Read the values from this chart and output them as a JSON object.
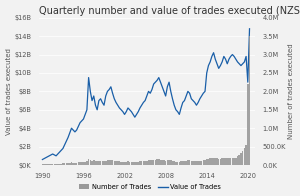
{
  "title": "Quarterly number and value of trades executed (NZSX and NZDX)",
  "ylabel_left": "Value of trades executed",
  "ylabel_right": "Number of trades executed",
  "left_ytick_labels": [
    "$0K",
    "$2B",
    "$4B",
    "$6B",
    "$8B",
    "$10B",
    "$12B",
    "$14B",
    "$16B"
  ],
  "left_ytick_vals": [
    0,
    2,
    4,
    6,
    8,
    10,
    12,
    14,
    16
  ],
  "right_ytick_labels": [
    "0.0K",
    "500.0K",
    "1.0M",
    "1.5M",
    "2.0M",
    "2.5M",
    "3.0M",
    "3.5M",
    "4.0M"
  ],
  "right_ytick_vals": [
    0,
    500000,
    1000000,
    1500000,
    2000000,
    2500000,
    3000000,
    3500000,
    4000000
  ],
  "xticks": [
    1990,
    1996,
    2002,
    2008,
    2014,
    2020
  ],
  "line_color": "#1a5fa8",
  "bar_color": "#999999",
  "background_color": "#f5f5f5",
  "legend_labels": [
    "Number of Trades",
    "Value of Trades"
  ],
  "title_fontsize": 7.0,
  "axis_fontsize": 5.0,
  "tick_fontsize": 4.8,
  "quarters": [
    1990.0,
    1990.25,
    1990.5,
    1990.75,
    1991.0,
    1991.25,
    1991.5,
    1991.75,
    1992.0,
    1992.25,
    1992.5,
    1992.75,
    1993.0,
    1993.25,
    1993.5,
    1993.75,
    1994.0,
    1994.25,
    1994.5,
    1994.75,
    1995.0,
    1995.25,
    1995.5,
    1995.75,
    1996.0,
    1996.25,
    1996.5,
    1996.75,
    1997.0,
    1997.25,
    1997.5,
    1997.75,
    1998.0,
    1998.25,
    1998.5,
    1998.75,
    1999.0,
    1999.25,
    1999.5,
    1999.75,
    2000.0,
    2000.25,
    2000.5,
    2000.75,
    2001.0,
    2001.25,
    2001.5,
    2001.75,
    2002.0,
    2002.25,
    2002.5,
    2002.75,
    2003.0,
    2003.25,
    2003.5,
    2003.75,
    2004.0,
    2004.25,
    2004.5,
    2004.75,
    2005.0,
    2005.25,
    2005.5,
    2005.75,
    2006.0,
    2006.25,
    2006.5,
    2006.75,
    2007.0,
    2007.25,
    2007.5,
    2007.75,
    2008.0,
    2008.25,
    2008.5,
    2008.75,
    2009.0,
    2009.25,
    2009.5,
    2009.75,
    2010.0,
    2010.25,
    2010.5,
    2010.75,
    2011.0,
    2011.25,
    2011.5,
    2011.75,
    2012.0,
    2012.25,
    2012.5,
    2012.75,
    2013.0,
    2013.25,
    2013.5,
    2013.75,
    2014.0,
    2014.25,
    2014.5,
    2014.75,
    2015.0,
    2015.25,
    2015.5,
    2015.75,
    2016.0,
    2016.25,
    2016.5,
    2016.75,
    2017.0,
    2017.25,
    2017.5,
    2017.75,
    2018.0,
    2018.25,
    2018.5,
    2018.75,
    2019.0,
    2019.25,
    2019.5,
    2019.75,
    2020.0,
    2020.25
  ],
  "value_of_trades": [
    0.6,
    0.7,
    0.8,
    0.9,
    1.0,
    1.1,
    1.2,
    1.1,
    1.0,
    1.2,
    1.4,
    1.6,
    1.8,
    2.2,
    2.6,
    3.0,
    3.5,
    4.0,
    3.8,
    3.6,
    3.8,
    4.2,
    4.6,
    4.8,
    5.0,
    5.5,
    6.0,
    9.5,
    8.0,
    7.0,
    7.5,
    6.5,
    6.0,
    7.0,
    7.2,
    6.8,
    6.5,
    7.5,
    8.0,
    8.2,
    8.5,
    7.8,
    7.2,
    6.8,
    6.5,
    6.2,
    6.0,
    5.8,
    5.5,
    5.8,
    6.2,
    6.0,
    5.8,
    5.5,
    5.2,
    5.5,
    5.8,
    6.2,
    6.5,
    6.8,
    7.0,
    7.5,
    8.0,
    7.8,
    8.2,
    8.8,
    9.0,
    9.2,
    9.5,
    9.0,
    8.5,
    8.0,
    7.5,
    8.5,
    9.0,
    8.0,
    7.2,
    6.5,
    6.0,
    5.8,
    5.5,
    6.2,
    6.8,
    7.0,
    7.5,
    8.0,
    7.8,
    7.2,
    7.0,
    6.8,
    6.5,
    6.8,
    7.2,
    7.5,
    7.8,
    8.0,
    10.0,
    10.8,
    11.2,
    11.8,
    12.2,
    11.5,
    11.0,
    10.5,
    10.8,
    11.2,
    11.8,
    11.5,
    11.0,
    11.5,
    11.8,
    12.0,
    11.8,
    11.5,
    11.2,
    11.0,
    10.8,
    11.0,
    11.2,
    11.8,
    9.0,
    14.8
  ],
  "num_of_trades": [
    20000,
    22000,
    25000,
    28000,
    30000,
    32000,
    35000,
    33000,
    31000,
    34000,
    37000,
    40000,
    43000,
    48000,
    53000,
    58000,
    65000,
    72000,
    68000,
    63000,
    67000,
    72000,
    78000,
    82000,
    85000,
    92000,
    100000,
    160000,
    140000,
    120000,
    125000,
    110000,
    100000,
    115000,
    118000,
    112000,
    108000,
    120000,
    128000,
    132000,
    138000,
    125000,
    115000,
    108000,
    103000,
    98000,
    95000,
    92000,
    88000,
    93000,
    100000,
    96000,
    92000,
    88000,
    83000,
    88000,
    93000,
    100000,
    105000,
    110000,
    115000,
    122000,
    130000,
    125000,
    132000,
    142000,
    148000,
    152000,
    158000,
    148000,
    138000,
    128000,
    120000,
    135000,
    145000,
    128000,
    115000,
    102000,
    96000,
    92000,
    88000,
    100000,
    110000,
    112000,
    120000,
    128000,
    125000,
    115000,
    112000,
    108000,
    103000,
    108000,
    115000,
    120000,
    125000,
    128000,
    160000,
    175000,
    182000,
    192000,
    200000,
    188000,
    178000,
    168000,
    175000,
    182000,
    192000,
    185000,
    178000,
    188000,
    195000,
    200000,
    195000,
    188000,
    240000,
    280000,
    320000,
    380000,
    450000,
    550000,
    2200000,
    3500000
  ]
}
